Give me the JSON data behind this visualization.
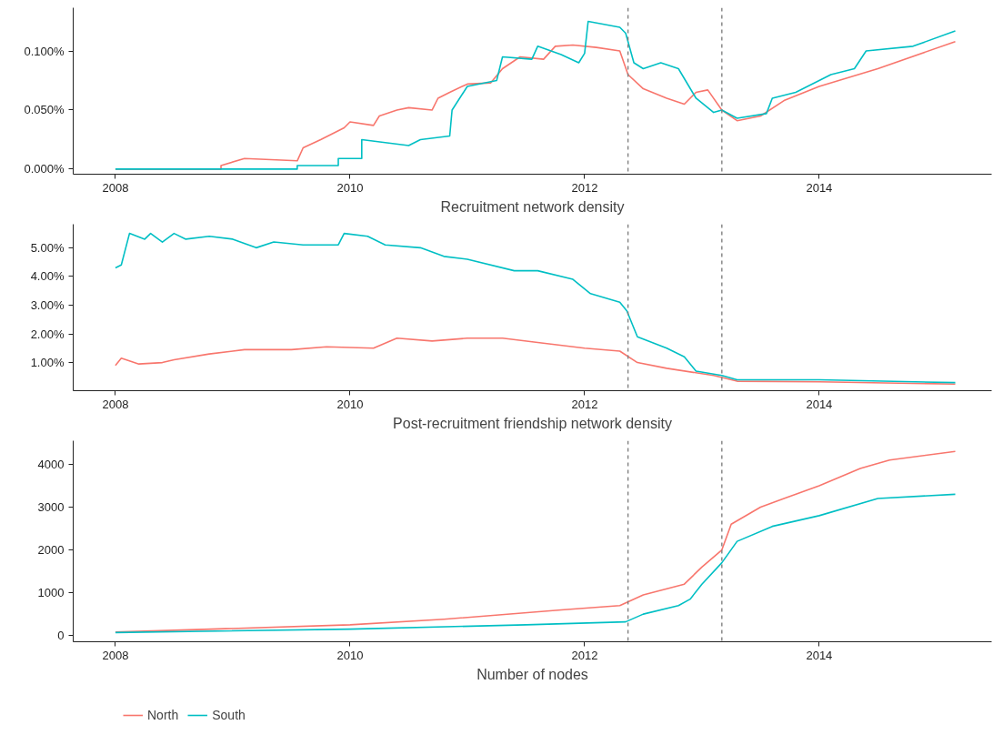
{
  "chart_data": [
    {
      "type": "line",
      "xlabel": "Recruitment network density",
      "xlim": [
        2007.64,
        2015.47
      ],
      "xticks": [
        2008,
        2010,
        2012,
        2014
      ],
      "ylim": [
        -0.0043,
        0.1366
      ],
      "yticks": [
        {
          "value": 0,
          "label": "0.000%"
        },
        {
          "value": 0.05,
          "label": "0.050%"
        },
        {
          "value": 0.1,
          "label": "0.100%"
        }
      ],
      "grid": false,
      "legend": false,
      "ref_lines": [
        {
          "axis": "x",
          "value": 2012.37,
          "color": "#808080",
          "line_style": "dashed"
        },
        {
          "axis": "x",
          "value": 2013.17,
          "color": "#808080",
          "line_style": "dashed"
        }
      ],
      "series": [
        {
          "color": "#f8766d",
          "x": [
            2008.0,
            2008.9,
            2008.9,
            2009.1,
            2009.55,
            2009.6,
            2009.75,
            2009.85,
            2009.95,
            2010.0,
            2010.2,
            2010.25,
            2010.4,
            2010.5,
            2010.7,
            2010.75,
            2010.85,
            2011.0,
            2011.2,
            2011.3,
            2011.45,
            2011.65,
            2011.75,
            2011.9,
            2012.1,
            2012.3,
            2012.37,
            2012.5,
            2012.7,
            2012.85,
            2012.95,
            2013.05,
            2013.17,
            2013.3,
            2013.5,
            2013.7,
            2014.0,
            2014.5,
            2015.16
          ],
          "values": [
            0,
            0,
            0.003,
            0.009,
            0.007,
            0.018,
            0.025,
            0.03,
            0.035,
            0.04,
            0.037,
            0.045,
            0.05,
            0.052,
            0.05,
            0.06,
            0.065,
            0.072,
            0.073,
            0.085,
            0.095,
            0.093,
            0.104,
            0.105,
            0.103,
            0.1,
            0.08,
            0.068,
            0.06,
            0.055,
            0.065,
            0.067,
            0.05,
            0.041,
            0.045,
            0.058,
            0.07,
            0.085,
            0.108
          ]
        },
        {
          "color": "#00bfc4",
          "x": [
            2008.0,
            2009.55,
            2009.55,
            2009.9,
            2009.9,
            2010.1,
            2010.1,
            2010.5,
            2010.6,
            2010.85,
            2010.87,
            2011.0,
            2011.25,
            2011.3,
            2011.55,
            2011.6,
            2011.8,
            2011.95,
            2012.0,
            2012.03,
            2012.3,
            2012.35,
            2012.42,
            2012.5,
            2012.65,
            2012.8,
            2012.95,
            2013.1,
            2013.17,
            2013.3,
            2013.55,
            2013.6,
            2013.8,
            2014.1,
            2014.3,
            2014.4,
            2014.8,
            2015.16
          ],
          "values": [
            0,
            0,
            0.003,
            0.003,
            0.009,
            0.009,
            0.025,
            0.02,
            0.025,
            0.028,
            0.05,
            0.07,
            0.075,
            0.095,
            0.093,
            0.104,
            0.097,
            0.09,
            0.098,
            0.125,
            0.12,
            0.115,
            0.09,
            0.085,
            0.09,
            0.085,
            0.06,
            0.048,
            0.05,
            0.043,
            0.047,
            0.06,
            0.065,
            0.08,
            0.085,
            0.1,
            0.104,
            0.117
          ]
        }
      ]
    },
    {
      "type": "line",
      "xlabel": "Post-recruitment friendship network density",
      "xlim": [
        2007.64,
        2015.47
      ],
      "xticks": [
        2008,
        2010,
        2012,
        2014
      ],
      "ylim": [
        0.02,
        5.82
      ],
      "yticks": [
        {
          "value": 1,
          "label": "1.00%"
        },
        {
          "value": 2,
          "label": "2.00%"
        },
        {
          "value": 3,
          "label": "3.00%"
        },
        {
          "value": 4,
          "label": "4.00%"
        },
        {
          "value": 5,
          "label": "5.00%"
        }
      ],
      "grid": false,
      "legend": false,
      "ref_lines": [
        {
          "axis": "x",
          "value": 2012.37,
          "color": "#808080",
          "line_style": "dashed"
        },
        {
          "axis": "x",
          "value": 2013.17,
          "color": "#808080",
          "line_style": "dashed"
        }
      ],
      "series": [
        {
          "color": "#f8766d",
          "x": [
            2008.0,
            2008.05,
            2008.2,
            2008.4,
            2008.5,
            2008.8,
            2009.1,
            2009.5,
            2009.8,
            2010.2,
            2010.4,
            2010.7,
            2011.0,
            2011.3,
            2011.6,
            2012.0,
            2012.3,
            2012.45,
            2012.7,
            2013.1,
            2013.3,
            2014.0,
            2015.16
          ],
          "values": [
            0.9,
            1.15,
            0.95,
            1.0,
            1.1,
            1.3,
            1.45,
            1.45,
            1.55,
            1.5,
            1.85,
            1.75,
            1.85,
            1.85,
            1.7,
            1.5,
            1.4,
            1.0,
            0.8,
            0.55,
            0.35,
            0.33,
            0.25
          ]
        },
        {
          "color": "#00bfc4",
          "x": [
            2008.0,
            2008.05,
            2008.12,
            2008.25,
            2008.3,
            2008.4,
            2008.5,
            2008.6,
            2008.8,
            2009.0,
            2009.2,
            2009.35,
            2009.6,
            2009.9,
            2009.95,
            2010.15,
            2010.3,
            2010.6,
            2010.8,
            2011.0,
            2011.4,
            2011.6,
            2011.9,
            2012.05,
            2012.3,
            2012.36,
            2012.45,
            2012.7,
            2012.85,
            2012.95,
            2013.17,
            2013.3,
            2014.0,
            2015.16
          ],
          "values": [
            4.3,
            4.4,
            5.5,
            5.3,
            5.5,
            5.2,
            5.5,
            5.3,
            5.4,
            5.3,
            5.0,
            5.2,
            5.1,
            5.1,
            5.5,
            5.4,
            5.1,
            5.0,
            4.7,
            4.6,
            4.2,
            4.2,
            3.9,
            3.4,
            3.1,
            2.8,
            1.9,
            1.5,
            1.2,
            0.7,
            0.55,
            0.4,
            0.4,
            0.3
          ]
        }
      ]
    },
    {
      "type": "line",
      "xlabel": "Number of nodes",
      "xlim": [
        2007.64,
        2015.47
      ],
      "xticks": [
        2008,
        2010,
        2012,
        2014
      ],
      "ylim": [
        -145,
        4550
      ],
      "yticks": [
        0,
        1000,
        2000,
        3000,
        4000
      ],
      "grid": false,
      "legend": "bottom",
      "ref_lines": [
        {
          "axis": "x",
          "value": 2012.37,
          "color": "#808080",
          "line_style": "dashed"
        },
        {
          "axis": "x",
          "value": 2013.17,
          "color": "#808080",
          "line_style": "dashed"
        }
      ],
      "series": [
        {
          "name": "North",
          "color": "#f8766d",
          "x": [
            2008.0,
            2010.0,
            2010.8,
            2011.8,
            2012.3,
            2012.5,
            2012.85,
            2013.0,
            2013.17,
            2013.25,
            2013.5,
            2013.7,
            2014.0,
            2014.35,
            2014.6,
            2015.16
          ],
          "values": [
            80,
            250,
            380,
            600,
            700,
            950,
            1200,
            1600,
            2000,
            2600,
            3000,
            3200,
            3500,
            3900,
            4100,
            4300
          ]
        },
        {
          "name": "South",
          "color": "#00bfc4",
          "x": [
            2008.0,
            2010.0,
            2011.5,
            2012.35,
            2012.5,
            2012.8,
            2012.9,
            2013.0,
            2013.17,
            2013.3,
            2013.6,
            2014.0,
            2014.5,
            2015.16
          ],
          "values": [
            70,
            150,
            250,
            320,
            500,
            700,
            850,
            1200,
            1700,
            2200,
            2550,
            2800,
            3200,
            3300
          ]
        }
      ]
    }
  ]
}
